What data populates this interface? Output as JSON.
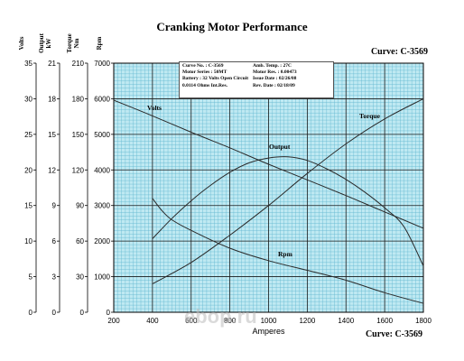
{
  "chart_data": {
    "type": "line",
    "title": "Cranking Motor Performance",
    "curve_label_top": "Curve: C-3569",
    "curve_label_bottom": "Curve: C-3569",
    "xlabel": "Amperes",
    "xlim": [
      200,
      1800
    ],
    "x_ticks": [
      "200",
      "400",
      "600",
      "800",
      "1000",
      "1200",
      "1400",
      "1600",
      "1800"
    ],
    "grid": true,
    "axes": [
      {
        "label": "Volts",
        "range": [
          0,
          35
        ],
        "ticks": [
          "0",
          "5",
          "10",
          "15",
          "20",
          "25",
          "30",
          "35"
        ]
      },
      {
        "label": "Output kW",
        "range": [
          0,
          21
        ],
        "ticks": [
          "0",
          "3",
          "6",
          "9",
          "12",
          "15",
          "18",
          "21"
        ]
      },
      {
        "label": "Torque Nm",
        "range": [
          0,
          210
        ],
        "ticks": [
          "0",
          "30",
          "60",
          "90",
          "120",
          "150",
          "180",
          "210"
        ]
      },
      {
        "label": "Rpm",
        "range": [
          0,
          7000
        ],
        "ticks": [
          "0",
          "1000",
          "2000",
          "3000",
          "4000",
          "5000",
          "6000",
          "7000"
        ]
      }
    ],
    "series": [
      {
        "name": "Volts",
        "axis": "Volts",
        "x": [
          200,
          400,
          600,
          800,
          1000,
          1200,
          1400,
          1600,
          1800
        ],
        "values": [
          29.8,
          27.6,
          25.3,
          23.1,
          20.8,
          18.6,
          16.4,
          14.1,
          11.8
        ]
      },
      {
        "name": "Output",
        "axis": "Output kW",
        "x": [
          400,
          500,
          600,
          700,
          800,
          900,
          1000,
          1100,
          1200,
          1300,
          1400,
          1500,
          1600,
          1700,
          1800
        ],
        "values": [
          6.2,
          7.9,
          9.4,
          10.7,
          11.8,
          12.6,
          13.0,
          13.1,
          12.8,
          12.1,
          11.2,
          10.1,
          8.8,
          7.2,
          3.9
        ]
      },
      {
        "name": "Torque",
        "axis": "Torque Nm",
        "x": [
          400,
          600,
          800,
          1000,
          1200,
          1400,
          1600,
          1800
        ],
        "values": [
          24,
          42,
          65,
          90,
          117,
          142,
          163,
          180
        ]
      },
      {
        "name": "Rpm",
        "axis": "Rpm",
        "x": [
          400,
          450,
          500,
          600,
          800,
          1000,
          1200,
          1400,
          1600,
          1800
        ],
        "values": [
          3200,
          2850,
          2600,
          2300,
          1800,
          1450,
          1180,
          900,
          550,
          250
        ]
      }
    ]
  },
  "info_box": {
    "rows": [
      [
        "Curve No.  : C-3569",
        "Amb. Temp.  : 27C"
      ],
      [
        "Motor Series  : 50MT",
        "Motor Res.  : 0.00473"
      ],
      [
        "Battery : 32 Volts Open Circuit",
        "Issue Date  : 02/26/08"
      ],
      [
        "0.0114 Ohms Int.Res.",
        "Rev. Date  : 02/18/09"
      ]
    ]
  },
  "watermark": "ebop.ru"
}
